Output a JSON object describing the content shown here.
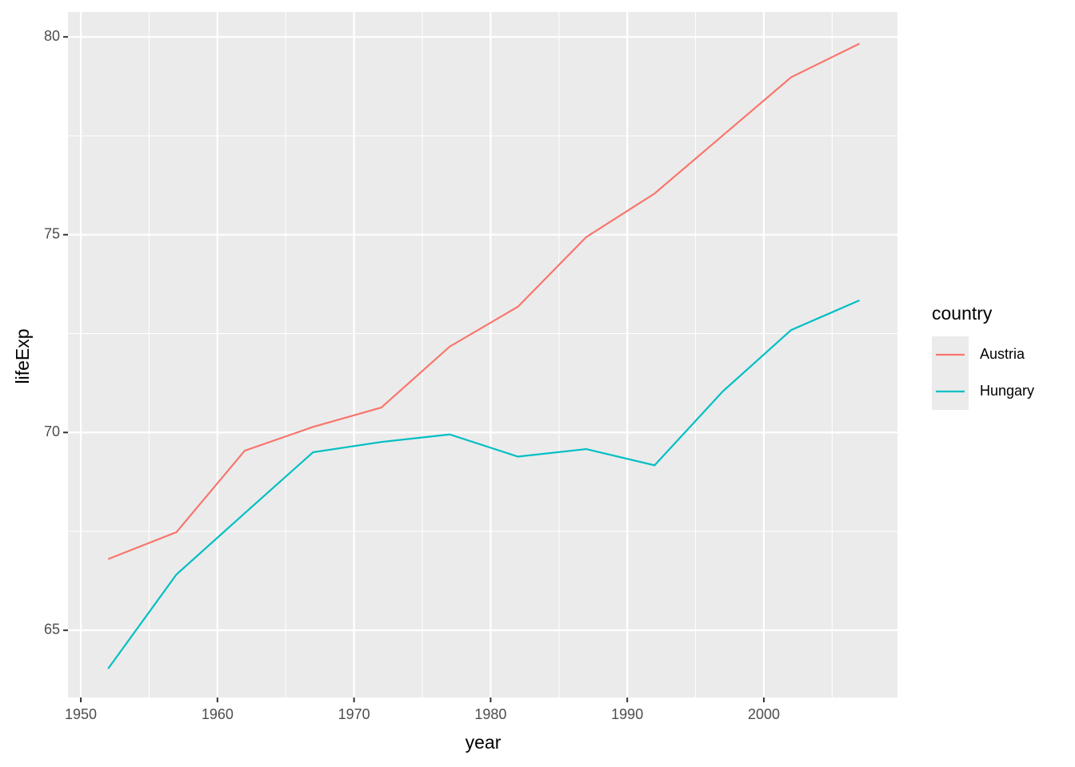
{
  "chart_data": {
    "type": "line",
    "x": [
      1952,
      1957,
      1962,
      1967,
      1972,
      1977,
      1982,
      1987,
      1992,
      1997,
      2002,
      2007
    ],
    "series": [
      {
        "name": "Austria",
        "color": "#f8766d",
        "values": [
          66.8,
          67.48,
          69.54,
          70.14,
          70.63,
          72.17,
          73.18,
          74.94,
          76.04,
          77.51,
          78.98,
          79.83
        ]
      },
      {
        "name": "Hungary",
        "color": "#00bfc4",
        "values": [
          64.03,
          66.41,
          67.96,
          69.5,
          69.76,
          69.95,
          69.39,
          69.58,
          69.17,
          71.04,
          72.59,
          73.34
        ]
      }
    ],
    "x_label": "year",
    "y_label": "lifeExp",
    "legend_title": "country",
    "legend": "right",
    "xlim": [
      1949.06,
      2009.78
    ],
    "ylim": [
      63.3,
      80.63
    ],
    "xticks": [
      1950,
      1960,
      1970,
      1980,
      1990,
      2000
    ],
    "yticks": [
      65,
      70,
      75,
      80
    ],
    "x_minor_ticks": [
      1955,
      1965,
      1975,
      1985,
      1995,
      2005
    ],
    "y_minor_ticks": [
      67.5,
      72.5,
      77.5
    ],
    "grid": true
  }
}
